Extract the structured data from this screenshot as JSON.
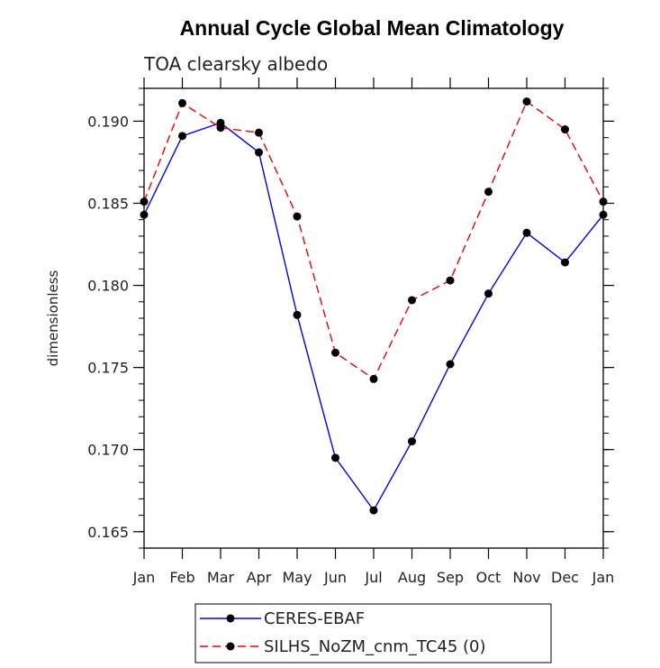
{
  "chart_data": {
    "type": "line",
    "title": "Annual Cycle Global Mean Climatology",
    "subtitle": "TOA clearsky albedo",
    "ylabel": "dimensionless",
    "xlabel": "",
    "categories": [
      "Jan",
      "Feb",
      "Mar",
      "Apr",
      "May",
      "Jun",
      "Jul",
      "Aug",
      "Sep",
      "Oct",
      "Nov",
      "Dec",
      "Jan"
    ],
    "ylim": [
      0.164,
      0.192
    ],
    "yticks": [
      "0.165",
      "0.170",
      "0.175",
      "0.180",
      "0.185",
      "0.190"
    ],
    "grid": false,
    "legend_position": "bottom",
    "series": [
      {
        "name": "CERES-EBAF",
        "color": "#0000ee",
        "dash": "solid",
        "values": [
          0.1843,
          0.1891,
          0.1899,
          0.1881,
          0.1782,
          0.1695,
          0.1663,
          0.1705,
          0.1752,
          0.1795,
          0.1832,
          0.1814,
          0.1843
        ]
      },
      {
        "name": "SILHS_NoZM_cnm_TC45 (0)",
        "color": "#ee0000",
        "dash": "dashed",
        "values": [
          0.1851,
          0.1911,
          0.1896,
          0.1893,
          0.1842,
          0.1759,
          0.1743,
          0.1791,
          0.1803,
          0.1857,
          0.1912,
          0.1895,
          0.1851
        ]
      }
    ]
  }
}
